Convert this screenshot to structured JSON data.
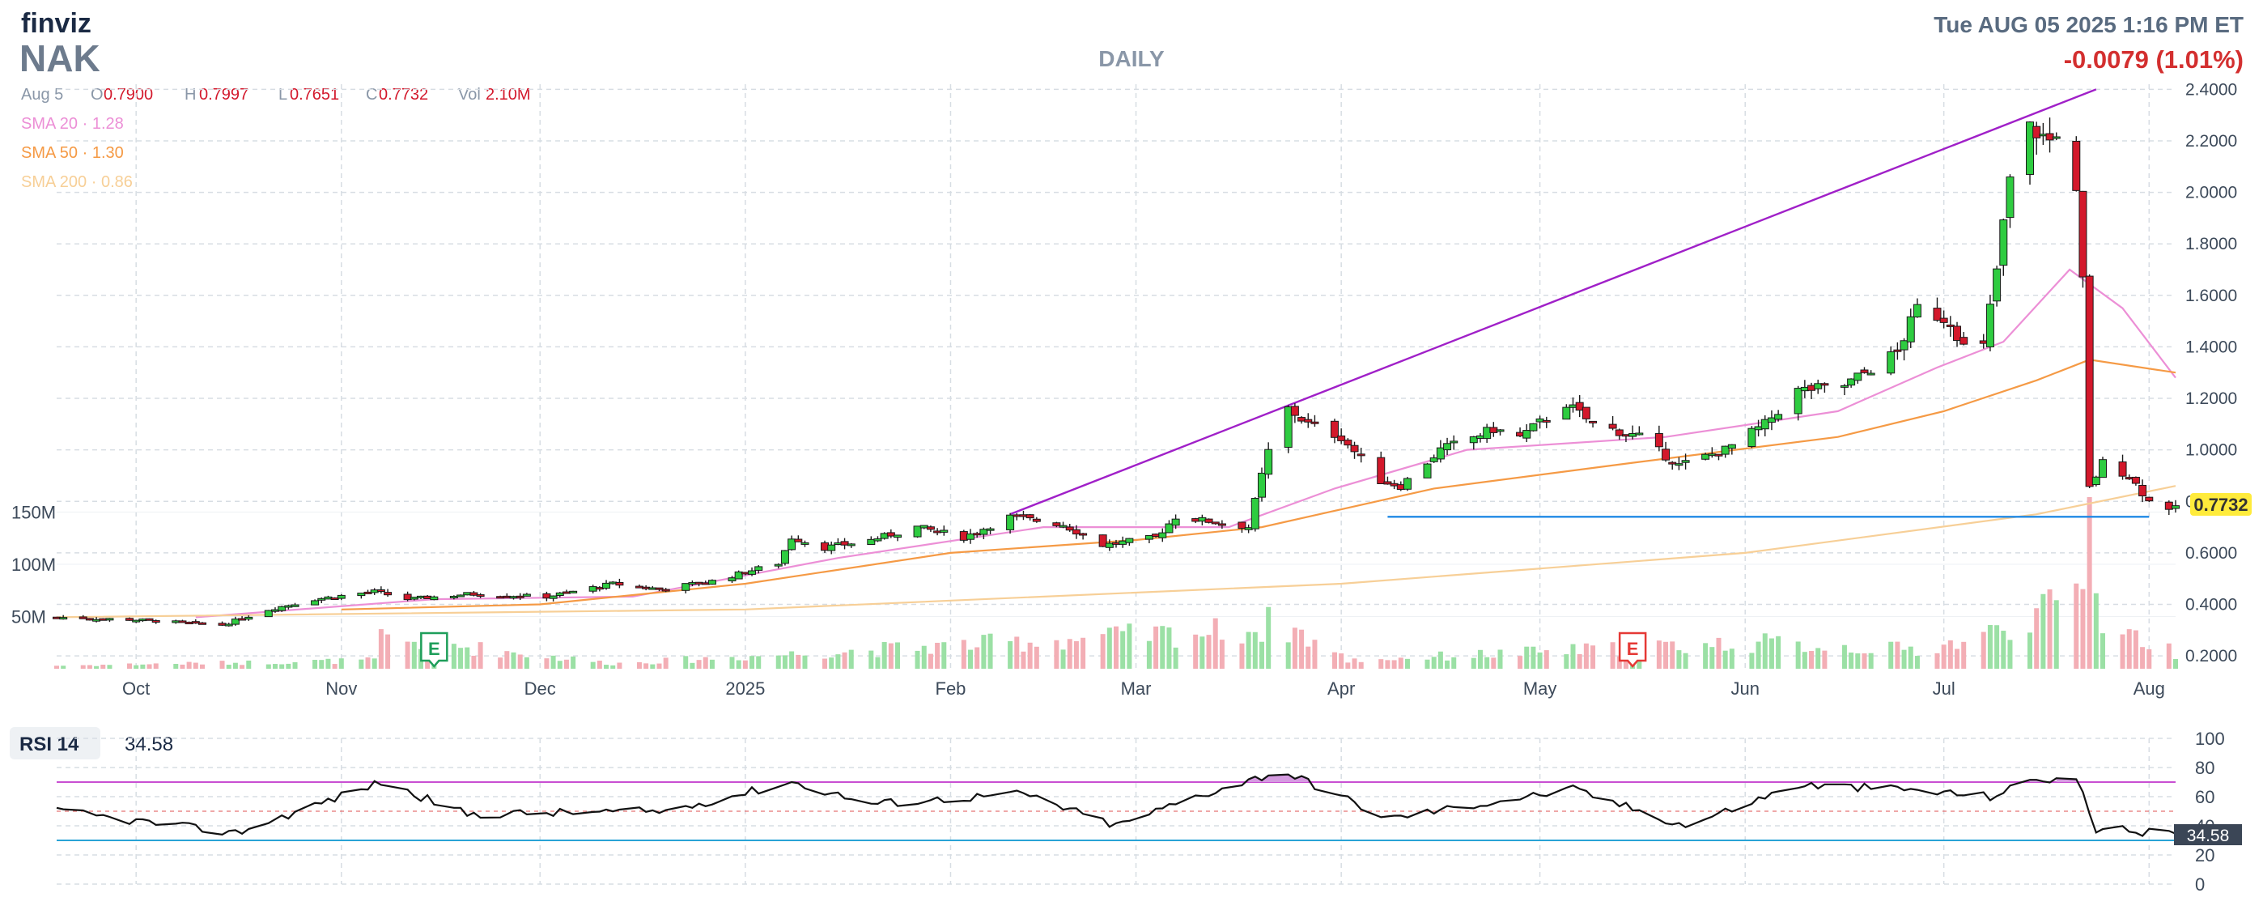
{
  "header": {
    "logo": "finviz",
    "ticker": "NAK",
    "timeframe": "DAILY",
    "datetime": "Tue AUG 05 2025 1:16 PM ET",
    "change": "-0.0079 (1.01%)",
    "change_color": "#d32f2f"
  },
  "ohlc": {
    "date": "Aug 5",
    "o_label": "O",
    "o": "0.7900",
    "h_label": "H",
    "h": "0.7997",
    "l_label": "L",
    "l": "0.7651",
    "c_label": "C",
    "c": "0.7732",
    "vol_label": "Vol",
    "vol": "2.10M"
  },
  "sma_legend": [
    {
      "label": "SMA 20",
      "value": "1.28",
      "color": "#ec8fd6"
    },
    {
      "label": "SMA 50",
      "value": "1.30",
      "color": "#f59a45"
    },
    {
      "label": "SMA 200",
      "value": "0.86",
      "color": "#f7cf97"
    }
  ],
  "volume_axis": [
    "150M",
    "100M",
    "50M"
  ],
  "price_axis": [
    "2.4000",
    "2.2000",
    "2.0000",
    "1.8000",
    "1.6000",
    "1.4000",
    "1.2000",
    "1.0000",
    "0.8000",
    "0.6000",
    "0.4000",
    "0.2000"
  ],
  "last_price": "0.7732",
  "last_price_color": "#ffeb3b",
  "x_labels": [
    "Oct",
    "Nov",
    "Dec",
    "2025",
    "Feb",
    "Mar",
    "Apr",
    "May",
    "Jun",
    "Jul",
    "Aug"
  ],
  "earnings_markers": [
    {
      "label": "E",
      "date": "2024-11-15",
      "color": "#1e9e5a"
    },
    {
      "label": "E",
      "date": "2025-05-15",
      "color": "#e53935"
    }
  ],
  "rsi": {
    "label": "RSI 14",
    "value": "34.58",
    "axis": [
      "100",
      "80",
      "60",
      "40",
      "20",
      "0"
    ],
    "overbought": 70,
    "oversold": 30,
    "overbought_color": "#c94fd2",
    "oversold_color": "#29a3d6"
  },
  "chart_data": {
    "type": "candlestick",
    "x_start": "2024-09-19",
    "x_end": "2025-08-05",
    "ylim": [
      0.15,
      2.42
    ],
    "volume_max_M": 155,
    "up_color": "#2ecc40",
    "down_color": "#d3182b",
    "price_keypoints": [
      [
        "2024-09-19",
        0.35
      ],
      [
        "2024-10-01",
        0.34
      ],
      [
        "2024-10-14",
        0.32
      ],
      [
        "2024-10-21",
        0.38
      ],
      [
        "2024-10-28",
        0.42
      ],
      [
        "2024-11-06",
        0.45
      ],
      [
        "2024-11-11",
        0.42
      ],
      [
        "2024-11-20",
        0.44
      ],
      [
        "2024-12-02",
        0.43
      ],
      [
        "2024-12-12",
        0.48
      ],
      [
        "2024-12-19",
        0.46
      ],
      [
        "2024-12-27",
        0.49
      ],
      [
        "2025-01-06",
        0.56
      ],
      [
        "2025-01-08",
        0.66
      ],
      [
        "2025-01-13",
        0.62
      ],
      [
        "2025-01-20",
        0.65
      ],
      [
        "2025-01-27",
        0.7
      ],
      [
        "2025-02-03",
        0.66
      ],
      [
        "2025-02-10",
        0.74
      ],
      [
        "2025-02-18",
        0.71
      ],
      [
        "2025-02-24",
        0.63
      ],
      [
        "2025-03-04",
        0.66
      ],
      [
        "2025-03-07",
        0.74
      ],
      [
        "2025-03-13",
        0.72
      ],
      [
        "2025-03-18",
        0.7
      ],
      [
        "2025-03-20",
        0.9
      ],
      [
        "2025-03-23",
        1.18
      ],
      [
        "2025-03-27",
        1.1
      ],
      [
        "2025-04-01",
        1.05
      ],
      [
        "2025-04-07",
        0.88
      ],
      [
        "2025-04-10",
        0.86
      ],
      [
        "2025-04-16",
        1.0
      ],
      [
        "2025-04-24",
        1.08
      ],
      [
        "2025-04-28",
        1.05
      ],
      [
        "2025-05-05",
        1.18
      ],
      [
        "2025-05-09",
        1.1
      ],
      [
        "2025-05-16",
        1.05
      ],
      [
        "2025-05-22",
        0.94
      ],
      [
        "2025-05-29",
        1.0
      ],
      [
        "2025-06-04",
        1.1
      ],
      [
        "2025-06-09",
        1.23
      ],
      [
        "2025-06-16",
        1.25
      ],
      [
        "2025-06-24",
        1.38
      ],
      [
        "2025-06-27",
        1.55
      ],
      [
        "2025-07-02",
        1.5
      ],
      [
        "2025-07-04",
        1.4
      ],
      [
        "2025-07-07",
        1.4
      ],
      [
        "2025-07-09",
        1.7
      ],
      [
        "2025-07-11",
        2.05
      ],
      [
        "2025-07-14",
        2.25
      ],
      [
        "2025-07-17",
        2.2
      ],
      [
        "2025-07-20",
        2.32
      ],
      [
        "2025-07-22",
        1.65
      ],
      [
        "2025-07-23",
        0.85
      ],
      [
        "2025-07-25",
        0.95
      ],
      [
        "2025-07-29",
        0.9
      ],
      [
        "2025-08-01",
        0.8
      ],
      [
        "2025-08-05",
        0.77
      ]
    ],
    "volume_keypoints": [
      [
        "2024-09-19",
        3
      ],
      [
        "2024-11-06",
        8
      ],
      [
        "2024-11-07",
        30
      ],
      [
        "2024-12-12",
        5
      ],
      [
        "2025-03-20",
        38
      ],
      [
        "2025-03-22",
        48
      ],
      [
        "2025-03-27",
        30
      ],
      [
        "2025-04-02",
        8
      ],
      [
        "2025-06-02",
        25
      ],
      [
        "2025-06-27",
        18
      ],
      [
        "2025-07-07",
        30
      ],
      [
        "2025-07-11",
        45
      ],
      [
        "2025-07-20",
        60
      ],
      [
        "2025-07-22",
        90
      ],
      [
        "2025-07-23",
        155
      ],
      [
        "2025-07-25",
        45
      ],
      [
        "2025-08-05",
        15
      ]
    ],
    "sma": [
      {
        "name": "SMA 20",
        "color": "#ec8fd6",
        "points": [
          [
            "2024-10-10",
            0.35
          ],
          [
            "2024-11-15",
            0.42
          ],
          [
            "2024-12-15",
            0.43
          ],
          [
            "2025-01-15",
            0.58
          ],
          [
            "2025-02-15",
            0.7
          ],
          [
            "2025-03-15",
            0.7
          ],
          [
            "2025-03-31",
            0.85
          ],
          [
            "2025-04-20",
            1.0
          ],
          [
            "2025-05-20",
            1.05
          ],
          [
            "2025-06-15",
            1.15
          ],
          [
            "2025-06-30",
            1.32
          ],
          [
            "2025-07-10",
            1.42
          ],
          [
            "2025-07-20",
            1.7
          ],
          [
            "2025-07-28",
            1.55
          ],
          [
            "2025-08-05",
            1.28
          ]
        ]
      },
      {
        "name": "SMA 50",
        "color": "#f59a45",
        "points": [
          [
            "2024-11-01",
            0.38
          ],
          [
            "2024-12-01",
            0.4
          ],
          [
            "2025-01-01",
            0.48
          ],
          [
            "2025-02-01",
            0.6
          ],
          [
            "2025-03-01",
            0.65
          ],
          [
            "2025-03-20",
            0.7
          ],
          [
            "2025-04-15",
            0.85
          ],
          [
            "2025-05-15",
            0.95
          ],
          [
            "2025-06-15",
            1.05
          ],
          [
            "2025-07-01",
            1.15
          ],
          [
            "2025-07-15",
            1.27
          ],
          [
            "2025-07-23",
            1.35
          ],
          [
            "2025-08-05",
            1.3
          ]
        ]
      },
      {
        "name": "SMA 200",
        "color": "#f7cf97",
        "points": [
          [
            "2024-09-19",
            0.35
          ],
          [
            "2025-01-01",
            0.38
          ],
          [
            "2025-04-01",
            0.48
          ],
          [
            "2025-06-01",
            0.6
          ],
          [
            "2025-07-15",
            0.75
          ],
          [
            "2025-08-05",
            0.86
          ]
        ]
      }
    ],
    "trendlines": [
      {
        "from": [
          "2025-02-10",
          0.75
        ],
        "to": [
          "2025-07-24",
          2.4
        ],
        "color": "#a020c8"
      },
      {
        "from": [
          "2025-04-08",
          0.74
        ],
        "to": [
          "2025-08-01",
          0.74
        ],
        "color": "#1e88e5"
      }
    ],
    "rsi_keypoints": [
      [
        "2024-09-19",
        50
      ],
      [
        "2024-10-16",
        35
      ],
      [
        "2024-11-07",
        70
      ],
      [
        "2024-11-20",
        48
      ],
      [
        "2024-12-20",
        50
      ],
      [
        "2025-01-08",
        70
      ],
      [
        "2025-01-20",
        55
      ],
      [
        "2025-02-12",
        62
      ],
      [
        "2025-02-26",
        40
      ],
      [
        "2025-03-10",
        60
      ],
      [
        "2025-03-23",
        78
      ],
      [
        "2025-03-31",
        62
      ],
      [
        "2025-04-08",
        45
      ],
      [
        "2025-05-06",
        65
      ],
      [
        "2025-05-23",
        40
      ],
      [
        "2025-06-09",
        68
      ],
      [
        "2025-06-25",
        65
      ],
      [
        "2025-07-08",
        60
      ],
      [
        "2025-07-15",
        72
      ],
      [
        "2025-07-21",
        72
      ],
      [
        "2025-07-24",
        38
      ],
      [
        "2025-08-05",
        34.58
      ]
    ]
  }
}
